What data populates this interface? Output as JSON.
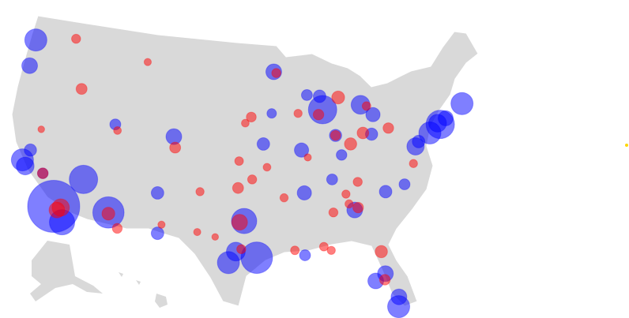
{
  "chart_data": {
    "type": "bubble-map",
    "series": [
      {
        "color": "#0000ff",
        "lon": [
          -118.2,
          -122.3,
          -122.7,
          -122.3,
          -121.9,
          -117.1,
          -115.1,
          -112.0,
          -105.0,
          -111.9,
          -87.6,
          -83.1,
          -73.9,
          -71.1,
          -75.2,
          -77.0,
          -84.4,
          -80.2,
          -95.4,
          -96.8,
          -98.5,
          -97.7,
          -93.3,
          -87.9,
          -81.7,
          -82.5,
          -81.4,
          -106.6,
          -106.4,
          -94.6,
          -90.2,
          -90.0,
          -90.1,
          -86.8,
          -80.8,
          -78.6,
          -76.6,
          -74.2,
          -73.2,
          -89.4,
          -93.6,
          -121.5,
          -119.8,
          -82.0,
          -85.6,
          -86.2,
          -80.1
        ],
        "lat": [
          34.0,
          47.6,
          45.5,
          37.8,
          37.3,
          32.7,
          36.2,
          33.5,
          39.7,
          40.7,
          41.9,
          42.3,
          40.7,
          42.4,
          40.0,
          38.9,
          33.7,
          25.8,
          29.8,
          32.8,
          29.4,
          30.3,
          45.0,
          43.0,
          41.5,
          27.9,
          28.5,
          35.1,
          31.8,
          39.1,
          38.6,
          35.1,
          30.0,
          36.2,
          35.2,
          35.8,
          39.3,
          40.8,
          41.2,
          43.1,
          41.6,
          38.6,
          36.7,
          39.9,
          38.2,
          39.8,
          26.6
        ],
        "sizes": [
          3600,
          650,
          330,
          650,
          420,
          850,
          1070,
          1300,
          330,
          160,
          1070,
          470,
          1070,
          650,
          650,
          400,
          330,
          650,
          1320,
          850,
          650,
          470,
          330,
          210,
          270,
          330,
          330,
          210,
          210,
          210,
          270,
          270,
          160,
          160,
          210,
          160,
          210,
          420,
          300,
          160,
          120,
          200,
          150,
          200,
          150,
          200,
          330
        ]
      },
      {
        "color": "#ff0000",
        "lon": [
          -97.5,
          -95.9,
          -85.7,
          -84.5,
          -97.3,
          -116.2,
          -117.4,
          -104.8,
          -117.8,
          -117.4,
          -81.7,
          -119.8,
          -96.0,
          -80.0,
          -83.0,
          -86.2,
          -83.9,
          -88.0,
          -92.3,
          -101.8,
          -97.4,
          -112.0,
          -110.9,
          -106.0,
          -85.3,
          -86.8,
          -88.1,
          -90.5,
          -84.0,
          -96.7,
          -97.1,
          -81.5,
          -77.4,
          -102.0,
          -100.0,
          -108.5,
          -94.2,
          -91.2,
          -87.2,
          -85.0,
          -93.0,
          -82.4,
          -89.5,
          -111.6,
          -120.5
        ],
        "lat": [
          35.5,
          36.2,
          42.9,
          39.1,
          32.7,
          43.6,
          47.7,
          38.8,
          33.7,
          33.9,
          30.3,
          36.7,
          41.3,
          40.4,
          40.0,
          39.8,
          36.0,
          30.7,
          34.7,
          35.2,
          37.7,
          33.4,
          32.2,
          32.5,
          35.0,
          33.5,
          41.5,
          41.6,
          33.9,
          40.8,
          30.5,
          28.0,
          37.5,
          31.9,
          31.5,
          45.8,
          37.2,
          30.4,
          30.4,
          34.2,
          44.9,
          42.2,
          38.0,
          40.2,
          40.3
        ],
        "sizes": [
          160,
          110,
          220,
          200,
          330,
          160,
          110,
          160,
          330,
          400,
          200,
          150,
          130,
          150,
          180,
          130,
          110,
          100,
          90,
          90,
          100,
          220,
          130,
          70,
          90,
          110,
          150,
          90,
          150,
          80,
          110,
          150,
          90,
          70,
          60,
          70,
          80,
          100,
          90,
          90,
          110,
          100,
          70,
          80,
          60
        ]
      }
    ]
  }
}
